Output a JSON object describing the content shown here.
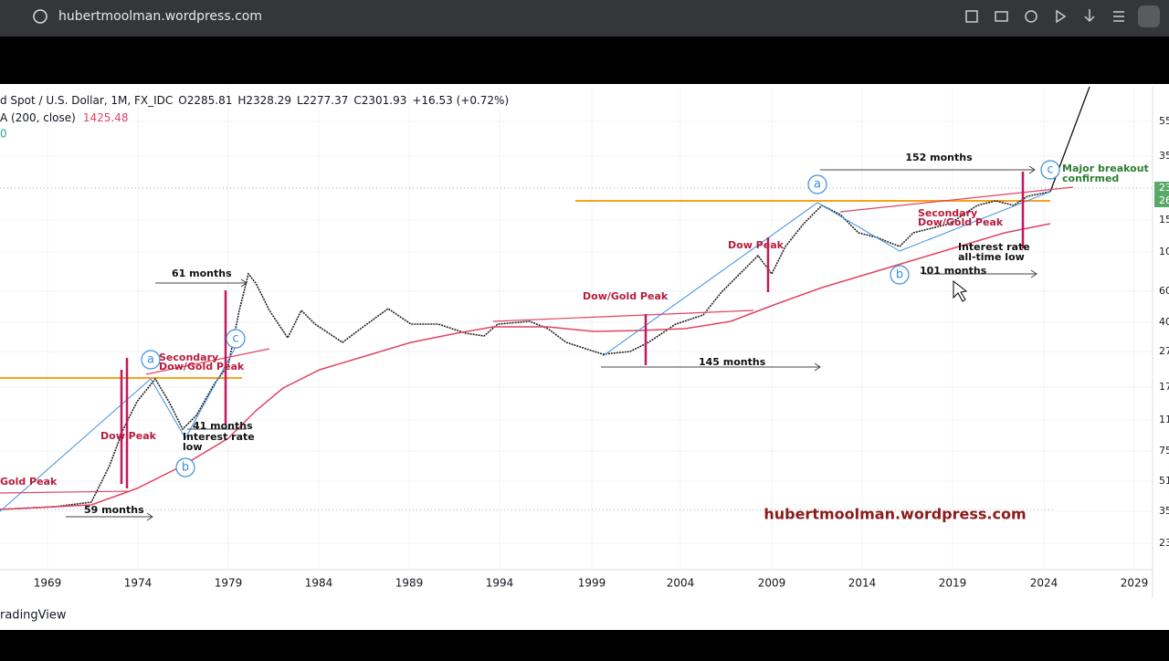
{
  "browser": {
    "url": "hubertmoolman.wordpress.com"
  },
  "legend": {
    "symbol": "d Spot / U.S. Dollar, 1M, FX_IDC",
    "open": "O2285.81",
    "high": "H2328.29",
    "low": "L2277.37",
    "close": "C2301.93",
    "change": "+16.53 (+0.72%)",
    "ma_label": "A (200, close)",
    "ma_value": "1425.48",
    "third_line": "0"
  },
  "x_axis": [
    "1969",
    "1974",
    "1979",
    "1984",
    "1989",
    "1994",
    "1999",
    "2004",
    "2009",
    "2014",
    "2019",
    "2024",
    "2029"
  ],
  "y_axis": [
    "55",
    "35",
    "23",
    "26",
    "15",
    "10",
    "60",
    "40",
    "27",
    "17",
    "11",
    "75",
    "51",
    "35",
    "23"
  ],
  "annotations": [
    "152 months",
    "Major breakout",
    "confirmed",
    "Secondary",
    "Dow/Gold Peak",
    "Interest rate",
    "all-time low",
    "101 months",
    "Dow Peak",
    "Dow/Gold Peak",
    "145 months",
    "61 months",
    "Secondary",
    "Dow/Gold Peak",
    "41 months",
    "Interest rate",
    "low",
    "Dow Peak",
    "Gold Peak",
    "59 months"
  ],
  "wave_labels": [
    "a",
    "b",
    "c",
    "a",
    "b",
    "c"
  ],
  "watermark": "hubertmoolman.wordpress.com",
  "footer": "radingView"
}
